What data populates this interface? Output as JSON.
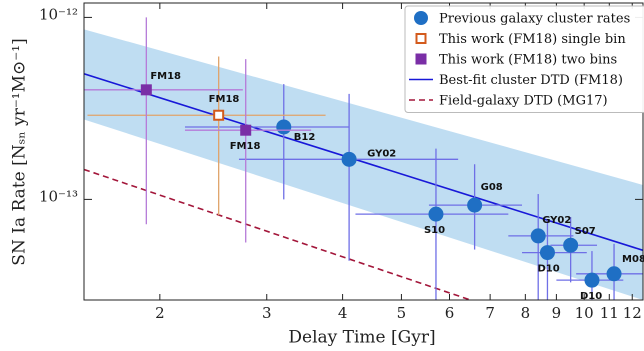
{
  "chart_data": {
    "type": "scatter",
    "xlog": true,
    "ylog": true,
    "x_label": "Delay Time [Gyr]",
    "y_label": "SN Ia Rate [Nₛₙ yr⁻¹M⊙⁻¹]",
    "xlim": [
      1.5,
      12.5
    ],
    "ylim": [
      2.8e-14,
      1.2e-12
    ],
    "xticks": [
      2,
      3,
      4,
      5,
      6,
      7,
      8,
      9,
      10,
      11,
      12
    ],
    "yticks": [
      {
        "value": 1e-12,
        "label": "10⁻¹²"
      },
      {
        "value": 1e-13,
        "label": "10⁻¹³"
      }
    ],
    "legend": "upper right",
    "series": [
      {
        "name": "Previous galaxy cluster rates",
        "type": "scatter",
        "marker": "circle",
        "color": "#1f6fc4",
        "error_color": "#6f6fe6",
        "labels": [
          "B12",
          "GY02",
          "S10",
          "G08",
          "GY02",
          "D10",
          "S07",
          "D10",
          "M08"
        ],
        "x": [
          3.2,
          4.1,
          5.7,
          6.6,
          8.4,
          8.7,
          9.5,
          10.3,
          11.2
        ],
        "values": [
          2.5e-13,
          1.66e-13,
          8.3e-14,
          9.3e-14,
          6.3e-14,
          5.1e-14,
          5.6e-14,
          3.6e-14,
          3.9e-14
        ],
        "x_low": [
          2.2,
          2.7,
          4.2,
          5.55,
          7.5,
          7.9,
          8.8,
          9.0,
          9.7
        ],
        "x_high": [
          4.1,
          6.2,
          7.5,
          7.9,
          9.6,
          10.1,
          10.5,
          11.6,
          12.5
        ],
        "y_low": [
          1e-13,
          4.6e-14,
          2.5e-14,
          5.3e-14,
          2.8e-14,
          2.8e-14,
          3.5e-14,
          2.8e-14,
          2.8e-14
        ],
        "y_high": [
          4.3e-13,
          3.8e-13,
          1.9e-13,
          1.56e-13,
          1.07e-13,
          7.8e-14,
          8e-14,
          5.2e-14,
          5.7e-14
        ]
      },
      {
        "name": "This work (FM18) single bin",
        "type": "scatter",
        "marker": "open-square",
        "color": "#d35a1c",
        "error_color": "#e0a36a",
        "labels": [
          "FM18"
        ],
        "x": [
          2.5
        ],
        "values": [
          2.9e-13
        ],
        "x_low": [
          1.52
        ],
        "x_high": [
          3.75
        ],
        "y_low": [
          8.2e-14
        ],
        "y_high": [
          6.1e-13
        ]
      },
      {
        "name": "This work (FM18) two bins",
        "type": "scatter",
        "marker": "square",
        "color": "#7a2ea6",
        "error_color": "#b57ad8",
        "labels": [
          "FM18",
          "FM18"
        ],
        "x": [
          1.9,
          2.77
        ],
        "values": [
          4e-13,
          2.4e-13
        ],
        "x_low": [
          1.5,
          2.2
        ],
        "x_high": [
          2.74,
          3.55
        ],
        "y_low": [
          7.3e-14,
          5.8e-14
        ],
        "y_high": [
          1e-12,
          5.9e-13
        ]
      },
      {
        "name": "Best-fit cluster DTD (FM18)",
        "type": "line",
        "color": "#1818d8",
        "band_color": "#a9d2ee",
        "x": [
          1.5,
          12.5
        ],
        "values": [
          4.9e-13,
          5.25e-14
        ],
        "band_low": [
          2.75e-13,
          2.8e-14
        ],
        "band_high": [
          8.6e-13,
          1.2e-13
        ]
      },
      {
        "name": "Field-galaxy DTD (MG17)",
        "type": "line",
        "dashed": true,
        "color": "#a3163a",
        "x": [
          1.5,
          12.5
        ],
        "values": [
          1.46e-13,
          1.34e-14
        ]
      }
    ]
  }
}
